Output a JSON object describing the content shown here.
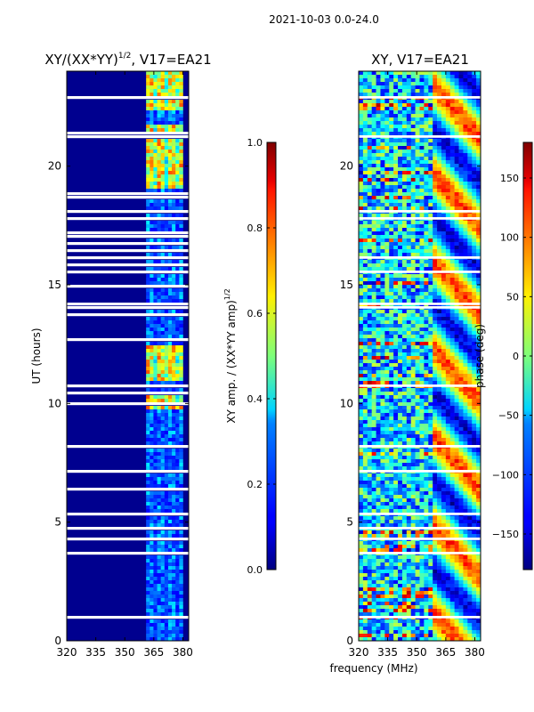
{
  "suptitle": "2021-10-03 0.0-24.0",
  "xlabel_common": "frequency (MHz)",
  "colors": {
    "background": "#00008f",
    "gap": "#ffffff"
  },
  "chart_data": [
    {
      "type": "heatmap",
      "name": "amplitude",
      "title": "XY/(XX*YY)",
      "title_exponent": "1/2",
      "title_suffix": ", V17=EA21",
      "xlabel": "",
      "ylabel": "UT (hours)",
      "xlim": [
        320,
        383
      ],
      "ylim": [
        0,
        24
      ],
      "xticks": [
        320,
        335,
        350,
        365,
        380
      ],
      "yticks": [
        0,
        5,
        10,
        15,
        20
      ],
      "colorbar": {
        "cmap": "jet",
        "label": "XY amp. / (XX*YY amp)",
        "label_exponent": "1/2",
        "range": [
          0.0,
          1.0
        ],
        "ticks": [
          0.0,
          0.2,
          0.4,
          0.6,
          0.8,
          1.0
        ],
        "tick_labels": [
          "0.0",
          "0.2",
          "0.4",
          "0.6",
          "0.8",
          "1.0"
        ]
      },
      "signal_band_mhz": [
        361,
        380
      ],
      "bright_bands_hours": [
        [
          9.8,
          10.4
        ],
        [
          10.9,
          12.5
        ],
        [
          19.1,
          21.8
        ],
        [
          22.4,
          24.0
        ]
      ]
    },
    {
      "type": "heatmap",
      "name": "phase",
      "title": "XY, V17=EA21",
      "xlabel": "frequency (MHz)",
      "ylabel": "",
      "xlim": [
        320,
        383
      ],
      "ylim": [
        0,
        24
      ],
      "xticks": [
        320,
        335,
        350,
        365,
        380
      ],
      "yticks": [
        0,
        5,
        10,
        15,
        20
      ],
      "colorbar": {
        "cmap": "jet",
        "label": "phase (deg)",
        "range": [
          -180,
          180
        ],
        "ticks": [
          -150,
          -100,
          -50,
          0,
          50,
          100,
          150
        ],
        "tick_labels": [
          "−150",
          "−100",
          "−50",
          "0",
          "50",
          "100",
          "150"
        ]
      }
    }
  ]
}
